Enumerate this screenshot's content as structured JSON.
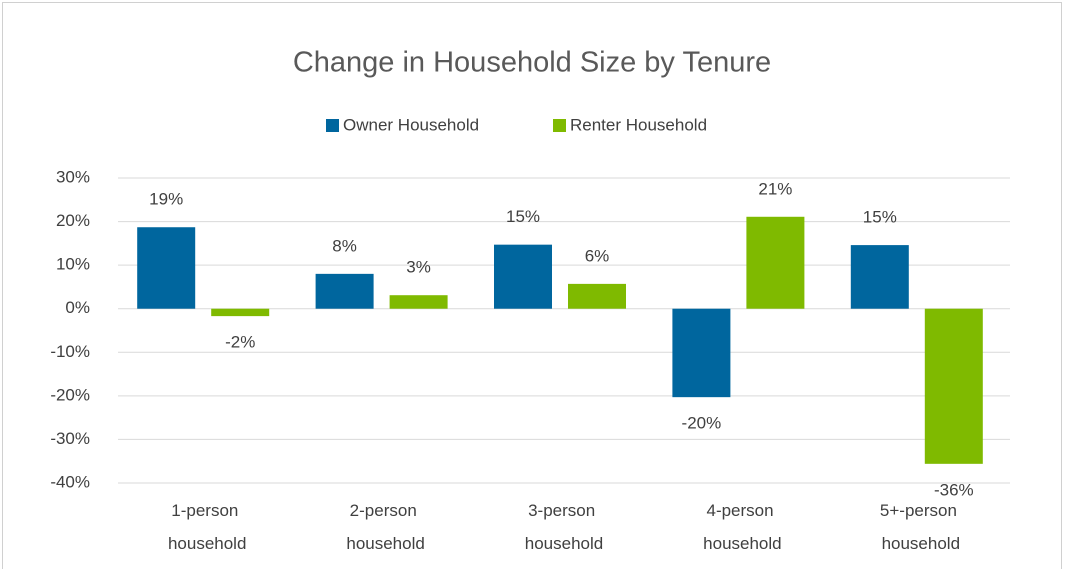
{
  "chart_data": {
    "type": "bar",
    "title": "Change in Household Size by Tenure",
    "categories": [
      "1-person household",
      "2-person household",
      "3-person household",
      "4-person household",
      "5+-person household"
    ],
    "series": [
      {
        "name": "Owner Household",
        "color": "#00669e",
        "values": [
          18.7,
          8.0,
          14.7,
          -20.3,
          14.6
        ],
        "value_labels": [
          "19%",
          "8%",
          "15%",
          "-20%",
          "15%"
        ]
      },
      {
        "name": "Renter Household",
        "color": "#7fba00",
        "values": [
          -1.7,
          3.1,
          5.7,
          21.1,
          -35.6
        ],
        "value_labels": [
          "-2%",
          "3%",
          "6%",
          "21%",
          "-36%"
        ]
      }
    ],
    "ylim": [
      -40,
      30
    ],
    "yticks": [
      {
        "value": -40,
        "label": "-40%"
      },
      {
        "value": -30,
        "label": "-30%"
      },
      {
        "value": -20,
        "label": "-20%"
      },
      {
        "value": -10,
        "label": "-10%"
      },
      {
        "value": 0,
        "label": "0%"
      },
      {
        "value": 10,
        "label": "10%"
      },
      {
        "value": 20,
        "label": "20%"
      },
      {
        "value": 30,
        "label": "30%"
      }
    ],
    "grid": true,
    "legend": "top"
  }
}
